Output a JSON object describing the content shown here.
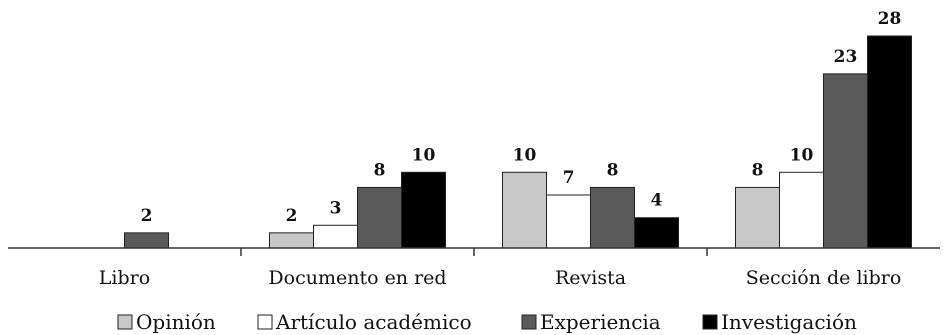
{
  "chart_data": {
    "type": "bar",
    "categories": [
      "Libro",
      "Documento en red",
      "Revista",
      "Sección de libro"
    ],
    "series": [
      {
        "name": "Opinión",
        "color": "#c8c8c8",
        "values": [
          0,
          2,
          10,
          8
        ]
      },
      {
        "name": "Artículo académico",
        "color": "#ffffff",
        "values": [
          0,
          3,
          7,
          10
        ]
      },
      {
        "name": "Experiencia",
        "color": "#5a5a5a",
        "values": [
          2,
          8,
          8,
          23
        ]
      },
      {
        "name": "Investigación",
        "color": "#000000",
        "values": [
          0,
          10,
          4,
          28
        ]
      }
    ],
    "data_labels": [
      [
        null,
        2,
        10,
        8
      ],
      [
        null,
        3,
        7,
        10
      ],
      [
        2,
        8,
        8,
        23
      ],
      [
        null,
        10,
        4,
        28
      ]
    ],
    "ylim": [
      0,
      28
    ],
    "legend_position": "bottom",
    "grid": false
  }
}
